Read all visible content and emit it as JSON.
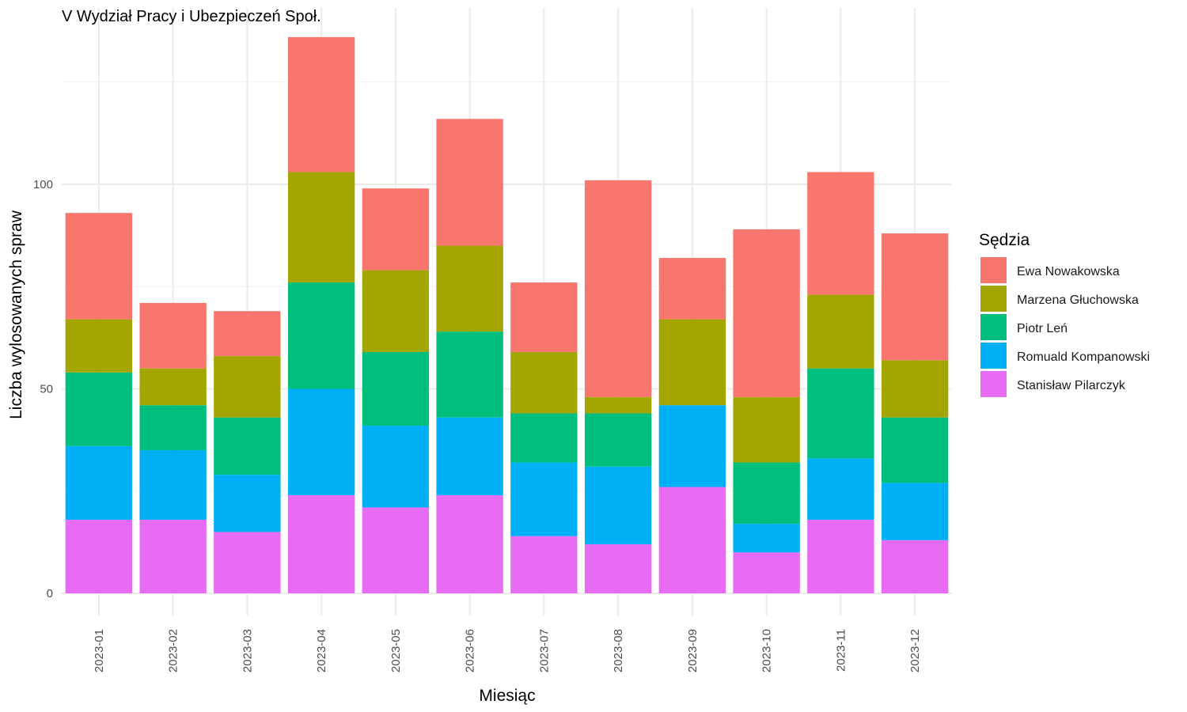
{
  "chart_data": {
    "type": "bar",
    "stacked": true,
    "title": "V Wydział Pracy i Ubezpieczeń Społ.",
    "xlabel": "Miesiąc",
    "ylabel": "Liczba wylosowanych spraw",
    "ylim": [
      0,
      140
    ],
    "yticks": [
      0,
      50,
      100
    ],
    "grid": true,
    "legend_title": "Sędzia",
    "legend_position": "right",
    "categories": [
      "2023-01",
      "2023-02",
      "2023-03",
      "2023-04",
      "2023-05",
      "2023-06",
      "2023-07",
      "2023-08",
      "2023-09",
      "2023-10",
      "2023-11",
      "2023-12"
    ],
    "series": [
      {
        "name": "Ewa Nowakowska",
        "color": "#F8766D",
        "values": [
          26,
          16,
          11,
          33,
          20,
          31,
          17,
          53,
          15,
          41,
          30,
          31
        ]
      },
      {
        "name": "Marzena Głuchowska",
        "color": "#A3A500",
        "values": [
          13,
          9,
          15,
          27,
          20,
          21,
          15,
          4,
          21,
          16,
          18,
          14
        ]
      },
      {
        "name": "Piotr Leń",
        "color": "#00BF7D",
        "values": [
          18,
          11,
          14,
          26,
          18,
          21,
          12,
          13,
          0,
          15,
          22,
          16
        ]
      },
      {
        "name": "Romuald Kompanowski",
        "color": "#00B0F6",
        "values": [
          18,
          17,
          14,
          26,
          20,
          19,
          18,
          19,
          20,
          7,
          15,
          14
        ]
      },
      {
        "name": "Stanisław Pilarczyk",
        "color": "#E76BF3",
        "values": [
          18,
          18,
          15,
          24,
          21,
          24,
          14,
          12,
          26,
          10,
          18,
          13
        ]
      }
    ]
  }
}
